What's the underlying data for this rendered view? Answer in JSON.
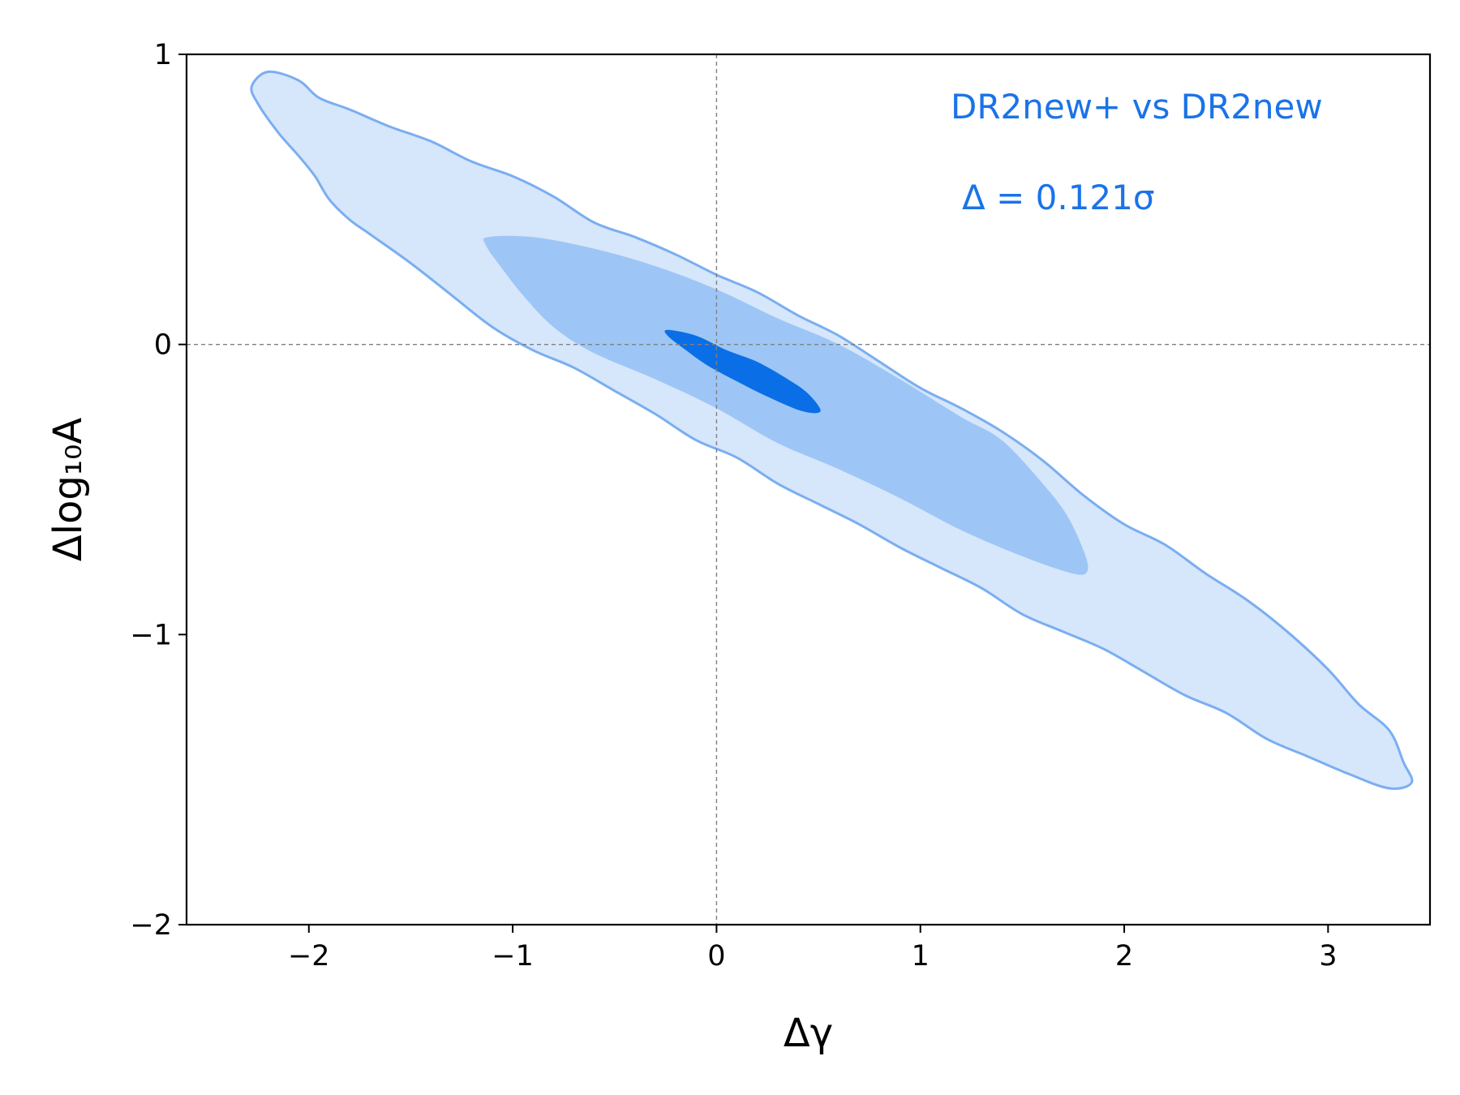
{
  "chart_data": {
    "type": "contour",
    "title": "",
    "xlabel": "Δγ",
    "ylabel": "Δlog₁₀A",
    "xlim": [
      -2.6,
      3.5
    ],
    "ylim": [
      -2,
      1
    ],
    "xticks": [
      -2,
      -1,
      0,
      1,
      2,
      3
    ],
    "yticks": [
      -2,
      -1,
      0,
      1
    ],
    "xtick_labels": [
      "−2",
      "−1",
      "0",
      "1",
      "2",
      "3"
    ],
    "ytick_labels": [
      "−2",
      "−1",
      "0",
      "1"
    ],
    "reference_lines": {
      "x": 0,
      "y": 0,
      "style": "dashed",
      "color": "#808080"
    },
    "grid": false,
    "legend_placement": "top-right",
    "annotations": [
      {
        "text": "DR2new+ vs DR2new",
        "color": "#1a73e8"
      },
      {
        "text": "Δ = 0.121σ",
        "color": "#1a73e8"
      }
    ],
    "contours": [
      {
        "level": "outer",
        "fill": "#d6e6fb",
        "stroke": "#7aaef0",
        "points": [
          [
            -2.2,
            0.94
          ],
          [
            -2.05,
            0.91
          ],
          [
            -1.95,
            0.85
          ],
          [
            -1.8,
            0.81
          ],
          [
            -1.6,
            0.75
          ],
          [
            -1.4,
            0.7
          ],
          [
            -1.2,
            0.63
          ],
          [
            -1.0,
            0.58
          ],
          [
            -0.8,
            0.51
          ],
          [
            -0.6,
            0.42
          ],
          [
            -0.4,
            0.37
          ],
          [
            -0.2,
            0.31
          ],
          [
            0.0,
            0.24
          ],
          [
            0.2,
            0.18
          ],
          [
            0.4,
            0.1
          ],
          [
            0.6,
            0.03
          ],
          [
            0.8,
            -0.06
          ],
          [
            1.0,
            -0.15
          ],
          [
            1.2,
            -0.22
          ],
          [
            1.4,
            -0.3
          ],
          [
            1.6,
            -0.4
          ],
          [
            1.8,
            -0.52
          ],
          [
            2.0,
            -0.62
          ],
          [
            2.2,
            -0.69
          ],
          [
            2.4,
            -0.79
          ],
          [
            2.6,
            -0.88
          ],
          [
            2.8,
            -0.99
          ],
          [
            3.0,
            -1.12
          ],
          [
            3.15,
            -1.24
          ],
          [
            3.3,
            -1.33
          ],
          [
            3.37,
            -1.44
          ],
          [
            3.41,
            -1.51
          ],
          [
            3.3,
            -1.53
          ],
          [
            3.1,
            -1.48
          ],
          [
            2.9,
            -1.42
          ],
          [
            2.7,
            -1.36
          ],
          [
            2.5,
            -1.27
          ],
          [
            2.3,
            -1.21
          ],
          [
            2.1,
            -1.13
          ],
          [
            1.9,
            -1.05
          ],
          [
            1.7,
            -0.99
          ],
          [
            1.5,
            -0.93
          ],
          [
            1.3,
            -0.84
          ],
          [
            1.1,
            -0.77
          ],
          [
            0.9,
            -0.7
          ],
          [
            0.7,
            -0.62
          ],
          [
            0.5,
            -0.55
          ],
          [
            0.3,
            -0.48
          ],
          [
            0.1,
            -0.39
          ],
          [
            -0.1,
            -0.33
          ],
          [
            -0.3,
            -0.24
          ],
          [
            -0.5,
            -0.16
          ],
          [
            -0.7,
            -0.08
          ],
          [
            -0.9,
            -0.02
          ],
          [
            -1.1,
            0.06
          ],
          [
            -1.3,
            0.17
          ],
          [
            -1.5,
            0.28
          ],
          [
            -1.7,
            0.38
          ],
          [
            -1.8,
            0.43
          ],
          [
            -1.9,
            0.5
          ],
          [
            -1.97,
            0.58
          ],
          [
            -2.05,
            0.65
          ],
          [
            -2.15,
            0.73
          ],
          [
            -2.25,
            0.83
          ],
          [
            -2.28,
            0.89
          ]
        ]
      },
      {
        "level": "middle",
        "fill": "#9dc6f6",
        "stroke": "none",
        "points": [
          [
            -1.12,
            0.37
          ],
          [
            -0.9,
            0.37
          ],
          [
            -0.6,
            0.33
          ],
          [
            -0.3,
            0.27
          ],
          [
            0.0,
            0.19
          ],
          [
            0.3,
            0.09
          ],
          [
            0.6,
            0.0
          ],
          [
            0.9,
            -0.12
          ],
          [
            1.2,
            -0.25
          ],
          [
            1.4,
            -0.33
          ],
          [
            1.6,
            -0.48
          ],
          [
            1.72,
            -0.59
          ],
          [
            1.8,
            -0.71
          ],
          [
            1.82,
            -0.78
          ],
          [
            1.75,
            -0.79
          ],
          [
            1.5,
            -0.73
          ],
          [
            1.2,
            -0.64
          ],
          [
            0.9,
            -0.53
          ],
          [
            0.6,
            -0.43
          ],
          [
            0.3,
            -0.34
          ],
          [
            0.0,
            -0.22
          ],
          [
            -0.3,
            -0.12
          ],
          [
            -0.6,
            -0.03
          ],
          [
            -0.8,
            0.06
          ],
          [
            -0.95,
            0.17
          ],
          [
            -1.05,
            0.26
          ],
          [
            -1.13,
            0.34
          ]
        ]
      },
      {
        "level": "inner",
        "fill": "#0a6fe6",
        "stroke": "none",
        "points": [
          [
            -0.24,
            0.05
          ],
          [
            -0.1,
            0.03
          ],
          [
            0.05,
            -0.02
          ],
          [
            0.2,
            -0.06
          ],
          [
            0.35,
            -0.12
          ],
          [
            0.45,
            -0.17
          ],
          [
            0.51,
            -0.23
          ],
          [
            0.42,
            -0.23
          ],
          [
            0.25,
            -0.18
          ],
          [
            0.08,
            -0.12
          ],
          [
            -0.05,
            -0.07
          ],
          [
            -0.15,
            -0.02
          ],
          [
            -0.24,
            0.03
          ]
        ]
      }
    ]
  }
}
